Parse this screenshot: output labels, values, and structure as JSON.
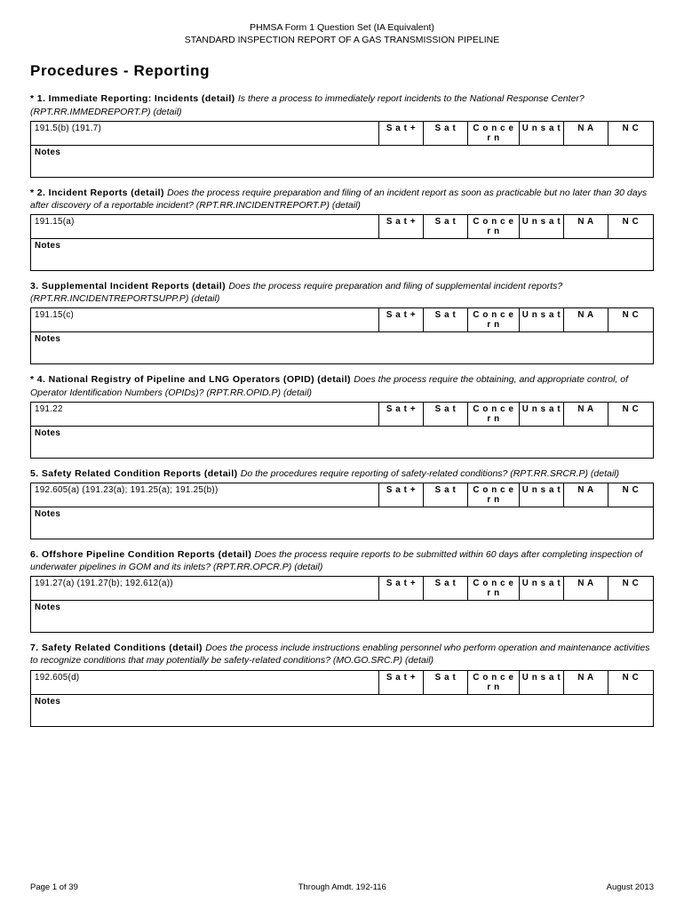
{
  "header": {
    "line1": "PHMSA Form 1 Question Set (IA Equivalent)",
    "line2": "STANDARD INSPECTION REPORT OF A GAS TRANSMISSION PIPELINE"
  },
  "section_title": "Procedures - Reporting",
  "rating_cols": [
    "S a t +",
    "S a t",
    "C o n c e r n",
    "U n s a t",
    "N A",
    "N C"
  ],
  "notes_label": "Notes",
  "questions": [
    {
      "num_title": "* 1. Immediate Reporting: Incidents (detail)",
      "desc": "Is there a process to immediately report incidents to the National Response Center? (RPT.RR.IMMEDREPORT.P) (detail)",
      "ref": "191.5(b) (191.7)"
    },
    {
      "num_title": "* 2. Incident Reports (detail)",
      "desc": "Does the process require preparation and filing of an incident report as soon as practicable but no later than 30 days after discovery of a reportable incident? (RPT.RR.INCIDENTREPORT.P) (detail)",
      "ref": "191.15(a)"
    },
    {
      "num_title": "3. Supplemental Incident Reports (detail)",
      "desc": "Does the process require preparation and filing of supplemental incident reports? (RPT.RR.INCIDENTREPORTSUPP.P) (detail)",
      "ref": "191.15(c)"
    },
    {
      "num_title": "* 4. National Registry of Pipeline and LNG Operators (OPID) (detail)",
      "desc": "Does the process require the obtaining, and appropriate control, of Operator Identification Numbers (OPIDs)? (RPT.RR.OPID.P) (detail)",
      "ref": "191.22"
    },
    {
      "num_title": "5. Safety Related Condition Reports (detail)",
      "desc": "Do the procedures require reporting of safety-related conditions? (RPT.RR.SRCR.P) (detail)",
      "ref": "192.605(a) (191.23(a); 191.25(a); 191.25(b))"
    },
    {
      "num_title": "6. Offshore Pipeline Condition Reports (detail)",
      "desc": "Does the process require reports to be submitted within 60 days after completing inspection of underwater pipelines in GOM and its inlets? (RPT.RR.OPCR.P) (detail)",
      "ref": "191.27(a) (191.27(b); 192.612(a))"
    },
    {
      "num_title": "7. Safety Related Conditions (detail)",
      "desc": "Does the process include instructions enabling personnel who perform operation and maintenance activities to recognize conditions that may potentially be safety-related conditions? (MO.GO.SRC.P) (detail)",
      "ref": "192.605(d)"
    }
  ],
  "footer": {
    "left": "Page 1 of 39",
    "center": "Through Amdt. 192-116",
    "right": "August 2013"
  }
}
